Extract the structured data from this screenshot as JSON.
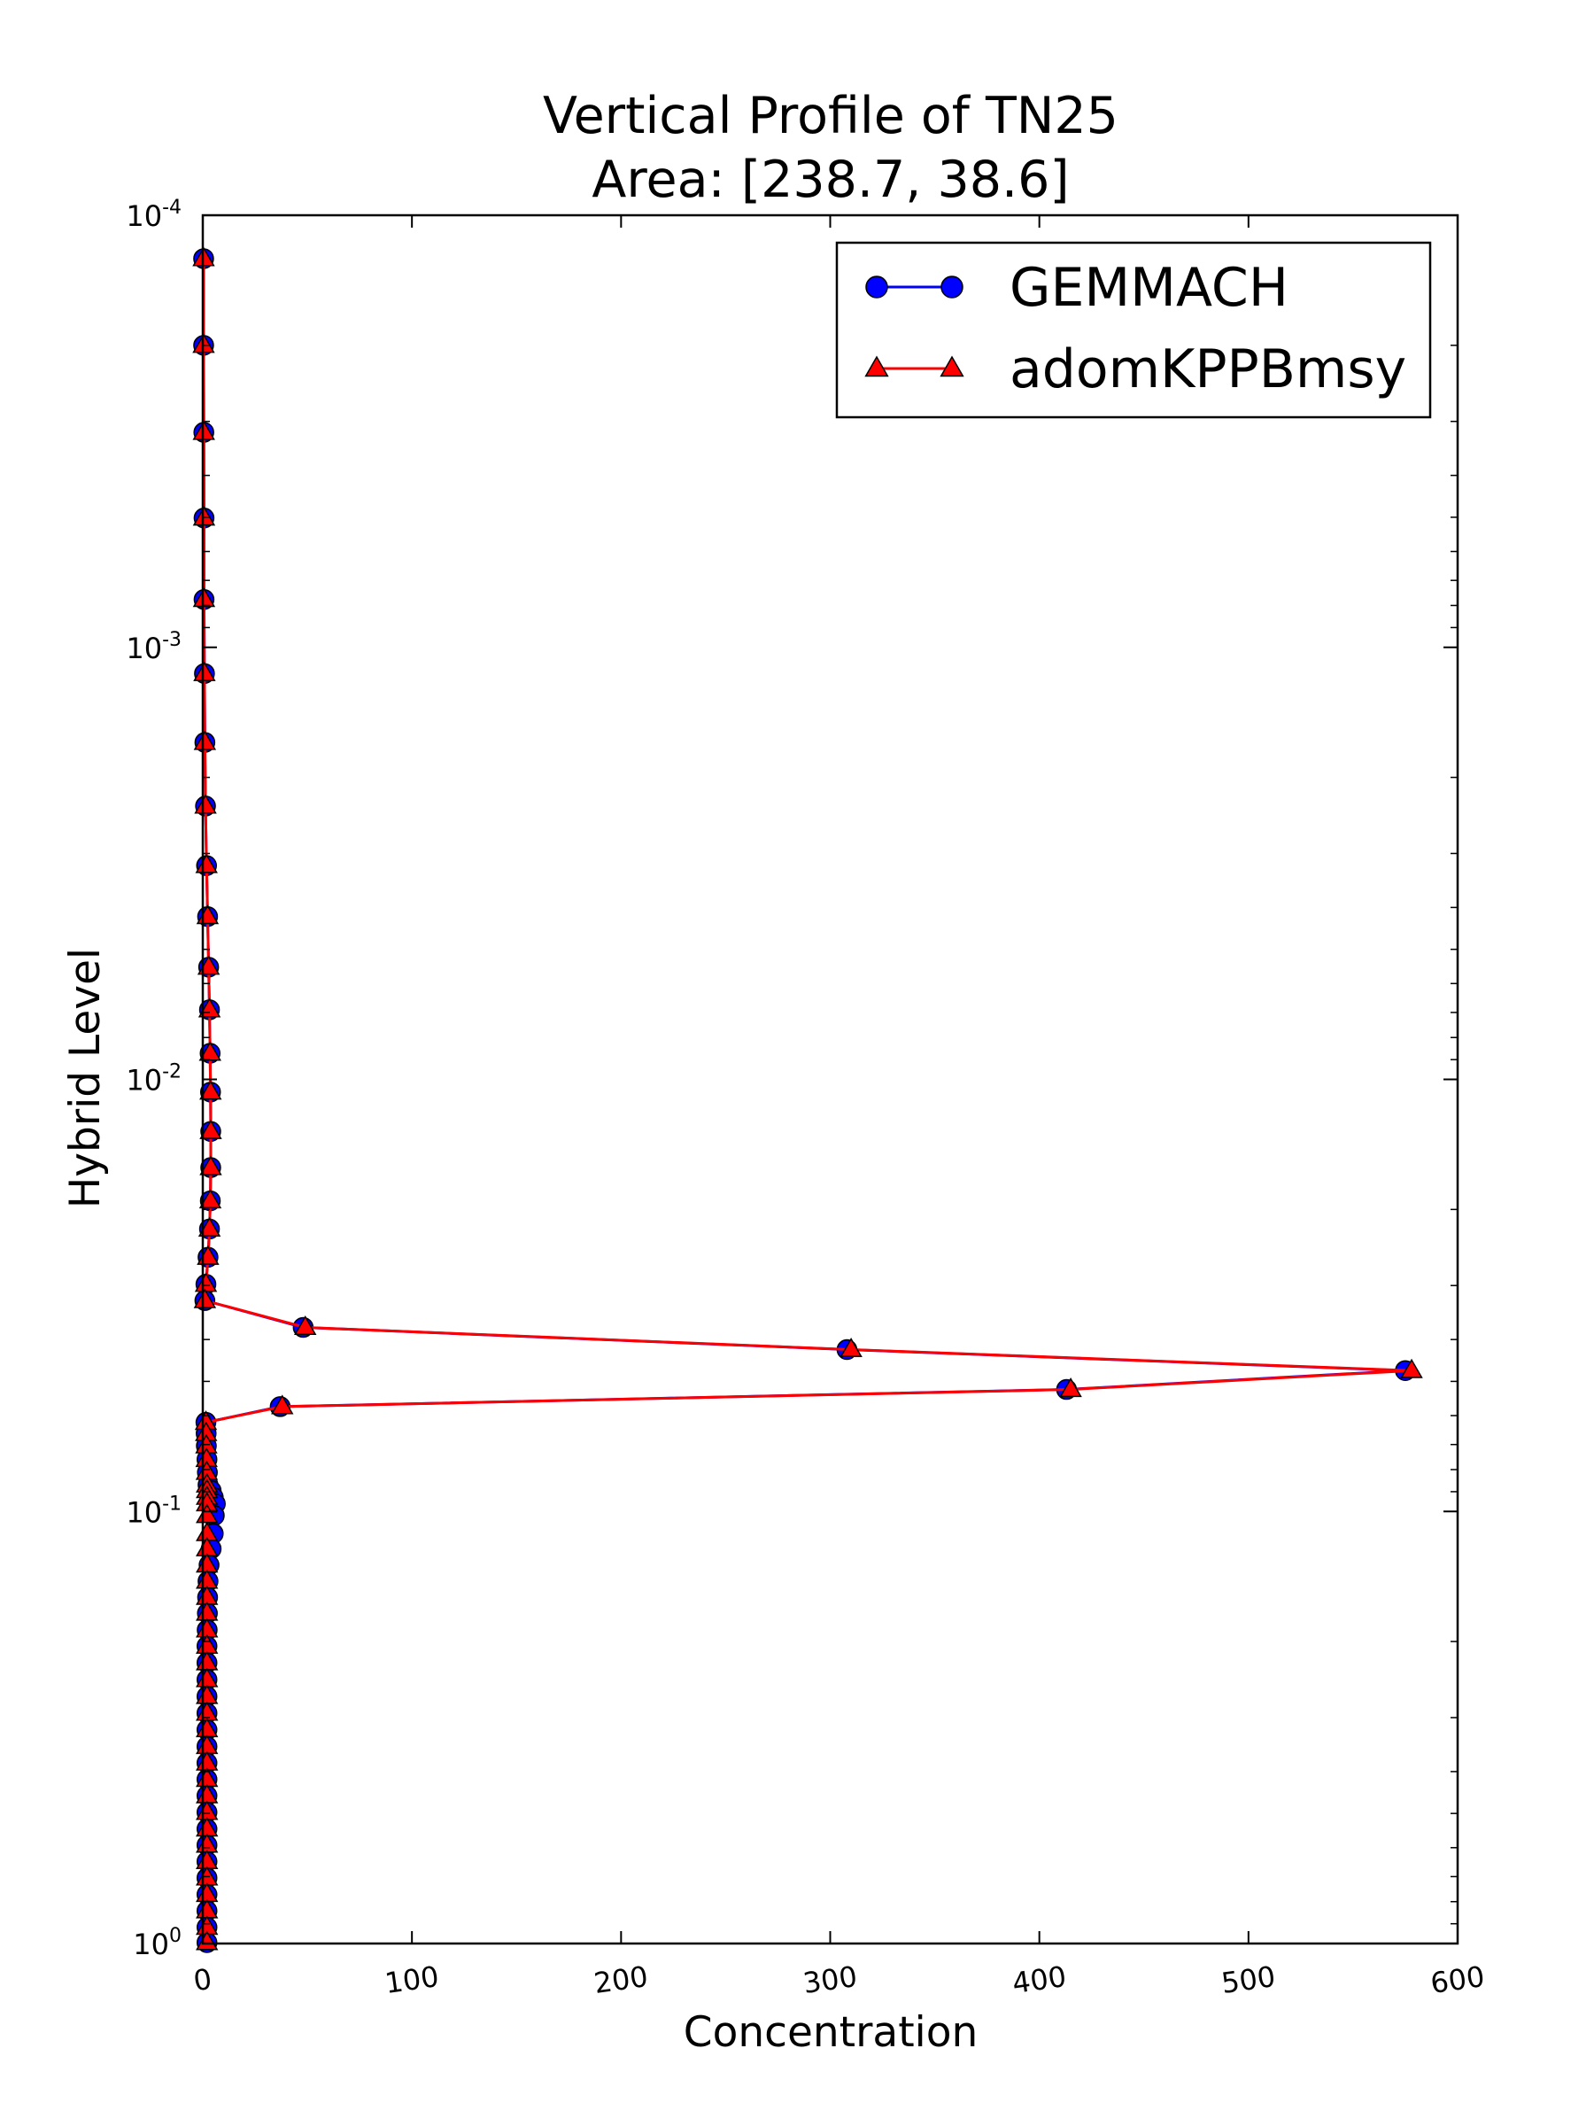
{
  "chart_data": {
    "type": "line",
    "title": "Vertical Profile of TN25",
    "subtitle": "Area: [238.7, 38.6]",
    "xlabel": "Concentration",
    "ylabel": "Hybrid Level",
    "xlim": [
      0,
      600
    ],
    "ylim": [
      1.0,
      0.0001
    ],
    "yscale": "log",
    "y_inverted": true,
    "grid": false,
    "legend_position": "top-right",
    "x_ticks": [
      "0",
      "100",
      "200",
      "300",
      "400",
      "500",
      "600"
    ],
    "x_tick_values": [
      0,
      100,
      200,
      300,
      400,
      500,
      600
    ],
    "y_ticks": [
      {
        "base": "10",
        "exp": "-4",
        "value": 0.0001
      },
      {
        "base": "10",
        "exp": "-3",
        "value": 0.001
      },
      {
        "base": "10",
        "exp": "-2",
        "value": 0.01
      },
      {
        "base": "10",
        "exp": "-1",
        "value": 0.1
      },
      {
        "base": "10",
        "exp": "0",
        "value": 1.0
      }
    ],
    "series": [
      {
        "name": "GEMMACH",
        "color": "#0000ff",
        "marker": "circle",
        "points": [
          [
            0.4,
            0.000126
          ],
          [
            0.4,
            0.0002
          ],
          [
            0.5,
            0.000318
          ],
          [
            0.6,
            0.000502
          ],
          [
            0.6,
            0.000775
          ],
          [
            0.8,
            0.00115
          ],
          [
            1.0,
            0.00166
          ],
          [
            1.3,
            0.00233
          ],
          [
            1.8,
            0.0032
          ],
          [
            2.3,
            0.0042
          ],
          [
            2.8,
            0.0055
          ],
          [
            3.2,
            0.0069
          ],
          [
            3.5,
            0.0087
          ],
          [
            3.7,
            0.0107
          ],
          [
            3.8,
            0.0132
          ],
          [
            3.8,
            0.016
          ],
          [
            3.6,
            0.0191
          ],
          [
            3.2,
            0.0222
          ],
          [
            2.5,
            0.0258
          ],
          [
            1.5,
            0.0298
          ],
          [
            1.0,
            0.0325
          ],
          [
            48.0,
            0.0375
          ],
          [
            308.0,
            0.0422
          ],
          [
            575.0,
            0.0472
          ],
          [
            413.0,
            0.0522
          ],
          [
            37.0,
            0.0572
          ],
          [
            1.5,
            0.0622
          ],
          [
            1.6,
            0.066
          ],
          [
            1.7,
            0.0705
          ],
          [
            2.0,
            0.0758
          ],
          [
            2.2,
            0.0812
          ],
          [
            2.5,
            0.0868
          ],
          [
            4.0,
            0.0895
          ],
          [
            5.0,
            0.0927
          ],
          [
            6.0,
            0.096
          ],
          [
            5.5,
            0.1022
          ],
          [
            5.0,
            0.1125
          ],
          [
            4.0,
            0.122
          ],
          [
            3.0,
            0.133
          ],
          [
            2.5,
            0.145
          ],
          [
            2.3,
            0.158
          ],
          [
            2.2,
            0.172
          ],
          [
            2.1,
            0.188
          ],
          [
            2.0,
            0.205
          ],
          [
            2.0,
            0.224
          ],
          [
            2.0,
            0.245
          ],
          [
            2.0,
            0.268
          ],
          [
            2.0,
            0.293
          ],
          [
            2.0,
            0.32
          ],
          [
            2.0,
            0.35
          ],
          [
            2.0,
            0.382
          ],
          [
            2.0,
            0.417
          ],
          [
            2.0,
            0.455
          ],
          [
            2.0,
            0.497
          ],
          [
            2.0,
            0.543
          ],
          [
            2.0,
            0.592
          ],
          [
            2.0,
            0.646
          ],
          [
            2.0,
            0.705
          ],
          [
            2.0,
            0.77
          ],
          [
            2.0,
            0.84
          ],
          [
            2.0,
            0.917
          ],
          [
            2.0,
            0.995
          ]
        ]
      },
      {
        "name": "adomKPPBmsy",
        "color": "#ff0000",
        "marker": "triangle",
        "points": [
          [
            0.4,
            0.000126
          ],
          [
            0.4,
            0.0002
          ],
          [
            0.5,
            0.000318
          ],
          [
            0.6,
            0.000502
          ],
          [
            0.6,
            0.000775
          ],
          [
            0.8,
            0.00115
          ],
          [
            1.0,
            0.00166
          ],
          [
            1.3,
            0.00233
          ],
          [
            1.8,
            0.0032
          ],
          [
            2.3,
            0.0042
          ],
          [
            2.8,
            0.0055
          ],
          [
            3.2,
            0.0069
          ],
          [
            3.5,
            0.0087
          ],
          [
            3.7,
            0.0107
          ],
          [
            3.8,
            0.0132
          ],
          [
            3.8,
            0.016
          ],
          [
            3.6,
            0.0191
          ],
          [
            3.2,
            0.0222
          ],
          [
            2.5,
            0.0258
          ],
          [
            1.5,
            0.0298
          ],
          [
            1.0,
            0.0325
          ],
          [
            49.0,
            0.0375
          ],
          [
            310.0,
            0.0422
          ],
          [
            578.0,
            0.0472
          ],
          [
            415.0,
            0.0522
          ],
          [
            38.0,
            0.0572
          ],
          [
            1.5,
            0.0622
          ],
          [
            1.6,
            0.066
          ],
          [
            1.7,
            0.0705
          ],
          [
            1.8,
            0.0758
          ],
          [
            1.9,
            0.0812
          ],
          [
            2.0,
            0.0868
          ],
          [
            2.0,
            0.0895
          ],
          [
            2.0,
            0.0927
          ],
          [
            2.0,
            0.096
          ],
          [
            2.0,
            0.1022
          ],
          [
            2.0,
            0.1125
          ],
          [
            2.0,
            0.122
          ],
          [
            2.0,
            0.133
          ],
          [
            2.0,
            0.145
          ],
          [
            2.0,
            0.158
          ],
          [
            2.0,
            0.172
          ],
          [
            2.0,
            0.188
          ],
          [
            2.0,
            0.205
          ],
          [
            2.0,
            0.224
          ],
          [
            2.0,
            0.245
          ],
          [
            2.0,
            0.268
          ],
          [
            2.0,
            0.293
          ],
          [
            2.0,
            0.32
          ],
          [
            2.0,
            0.35
          ],
          [
            2.0,
            0.382
          ],
          [
            2.0,
            0.417
          ],
          [
            2.0,
            0.455
          ],
          [
            2.0,
            0.497
          ],
          [
            2.0,
            0.543
          ],
          [
            2.0,
            0.592
          ],
          [
            2.0,
            0.646
          ],
          [
            2.0,
            0.705
          ],
          [
            2.0,
            0.77
          ],
          [
            2.0,
            0.84
          ],
          [
            2.0,
            0.917
          ],
          [
            2.0,
            0.995
          ]
        ]
      }
    ]
  }
}
